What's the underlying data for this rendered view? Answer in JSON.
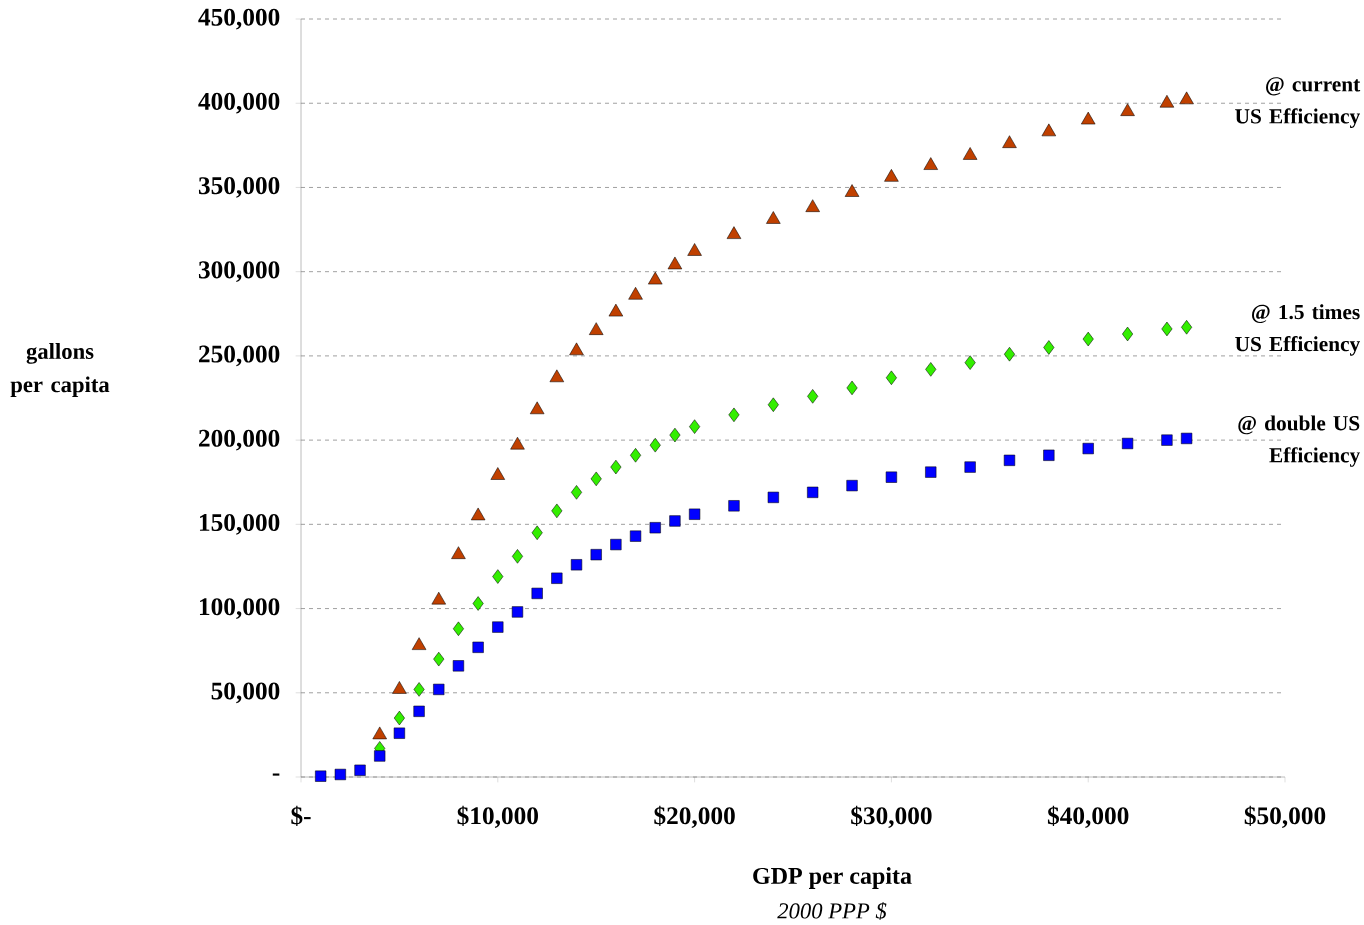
{
  "chart_data": {
    "type": "scatter",
    "xlabel": "GDP per capita",
    "ylabel": "gallons per capita",
    "annotations": [
      "2000 PPP $"
    ],
    "xlim": [
      0,
      50000
    ],
    "ylim": [
      0,
      450000
    ],
    "xticks": [
      {
        "value": 0,
        "label": "$-"
      },
      {
        "value": 10000,
        "label": "$10,000"
      },
      {
        "value": 20000,
        "label": "$20,000"
      },
      {
        "value": 30000,
        "label": "$30,000"
      },
      {
        "value": 40000,
        "label": "$40,000"
      },
      {
        "value": 50000,
        "label": "$50,000"
      }
    ],
    "yticks": [
      {
        "value": 0,
        "label": "-"
      },
      {
        "value": 50000,
        "label": "50,000"
      },
      {
        "value": 100000,
        "label": "100,000"
      },
      {
        "value": 150000,
        "label": "150,000"
      },
      {
        "value": 200000,
        "label": "200,000"
      },
      {
        "value": 250000,
        "label": "250,000"
      },
      {
        "value": 300000,
        "label": "300,000"
      },
      {
        "value": 350000,
        "label": "350,000"
      },
      {
        "value": 400000,
        "label": "400,000"
      },
      {
        "value": 450000,
        "label": "450,000"
      }
    ],
    "grid": "y",
    "x": [
      1000,
      2000,
      3000,
      4000,
      5000,
      6000,
      7000,
      8000,
      9000,
      10000,
      11000,
      12000,
      13000,
      14000,
      15000,
      16000,
      17000,
      18000,
      19000,
      20000,
      22000,
      24000,
      26000,
      28000,
      30000,
      32000,
      34000,
      36000,
      38000,
      40000,
      42000,
      44000,
      45000
    ],
    "series": [
      {
        "name": "@ current US Efficiency",
        "color": "#c04000",
        "marker": "triangle",
        "values": [
          null,
          null,
          null,
          25000,
          52000,
          78000,
          105000,
          132000,
          155000,
          179000,
          197000,
          218000,
          237000,
          253000,
          265000,
          276000,
          286000,
          295000,
          304000,
          312000,
          322000,
          331000,
          338000,
          347000,
          356000,
          363000,
          369000,
          376000,
          383000,
          390000,
          395000,
          400000,
          402000
        ]
      },
      {
        "name": "@ 1.5 times US Efficiency",
        "color": "#33ee00",
        "marker": "diamond",
        "values": [
          null,
          null,
          null,
          17000,
          35000,
          52000,
          70000,
          88000,
          103000,
          119000,
          131000,
          145000,
          158000,
          169000,
          177000,
          184000,
          191000,
          197000,
          203000,
          208000,
          215000,
          221000,
          226000,
          231000,
          237000,
          242000,
          246000,
          251000,
          255000,
          260000,
          263000,
          266000,
          267000
        ]
      },
      {
        "name": "@ double US Efficiency",
        "color": "#0000ff",
        "marker": "square",
        "values": [
          500,
          1500,
          4000,
          12500,
          26000,
          39000,
          52000,
          66000,
          77000,
          89000,
          98000,
          109000,
          118000,
          126000,
          132000,
          138000,
          143000,
          148000,
          152000,
          156000,
          161000,
          166000,
          169000,
          173000,
          178000,
          181000,
          184000,
          188000,
          191000,
          195000,
          198000,
          200000,
          201000
        ]
      }
    ]
  }
}
